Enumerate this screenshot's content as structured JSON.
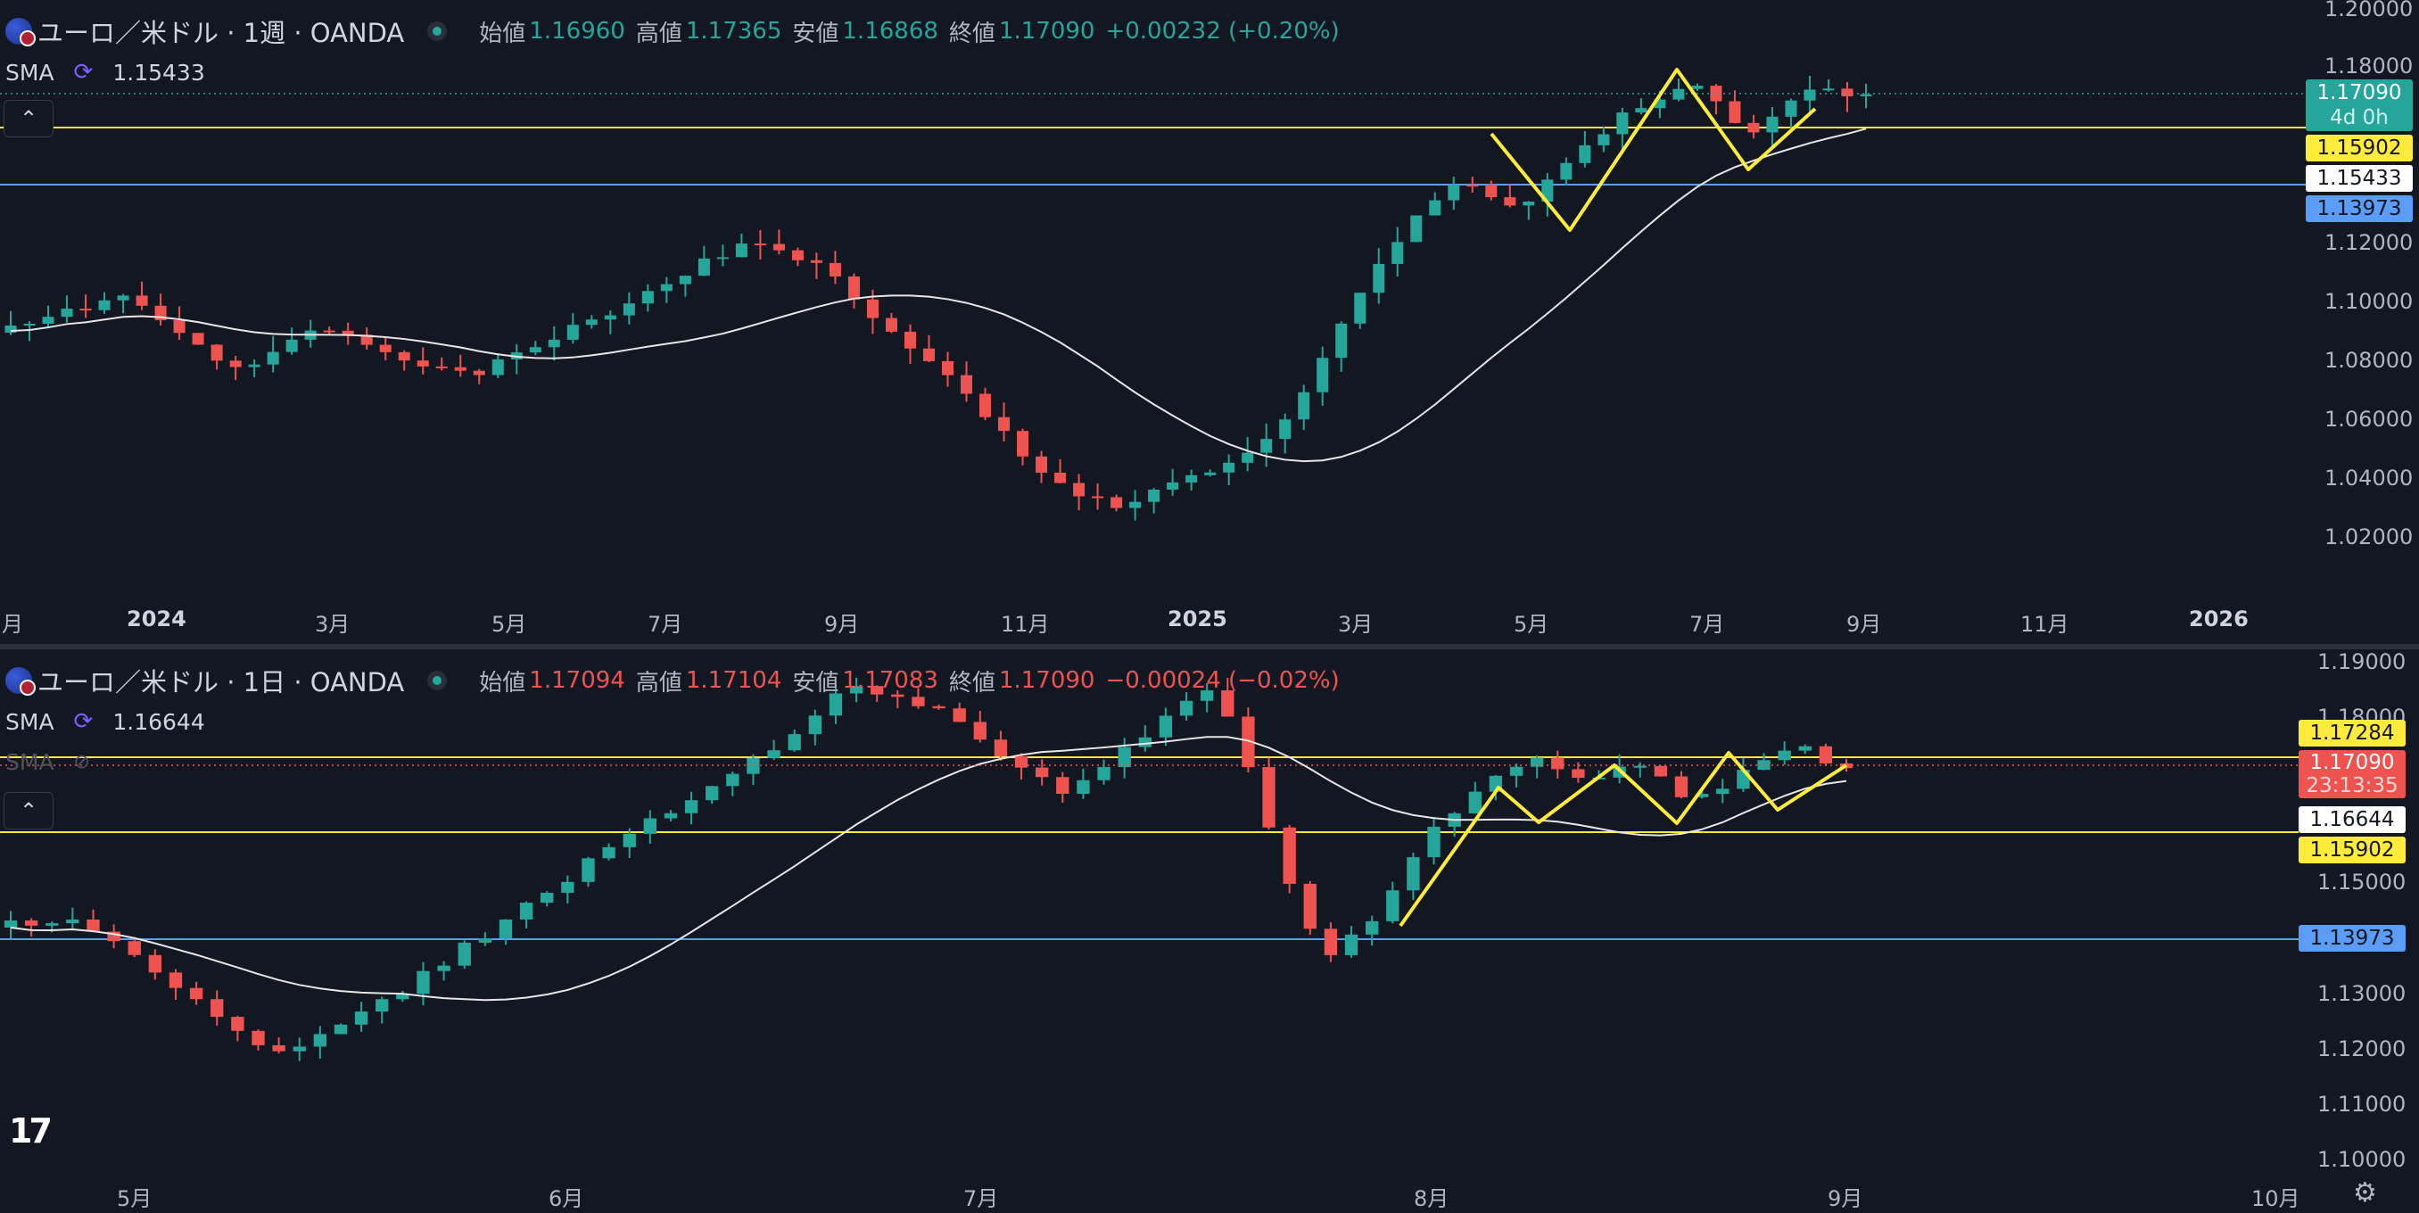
{
  "weekly": {
    "symbol": "ユーロ／米ドル · 1週 · OANDA",
    "ohlc": [
      {
        "k": "始値",
        "v": "1.16960"
      },
      {
        "k": "高値",
        "v": "1.17365"
      },
      {
        "k": "安値",
        "v": "1.16868"
      },
      {
        "k": "終値",
        "v": "1.17090"
      }
    ],
    "change": "+0.00232 (+0.20%)",
    "change_dir": "up",
    "sma_label": "SMA",
    "sma_value": "1.15433",
    "price_axis": [
      "1.20000",
      "1.18000",
      "1.12000",
      "1.10000",
      "1.08000",
      "1.06000",
      "1.04000",
      "1.02000"
    ],
    "time_axis": [
      "月",
      "2024",
      "3月",
      "5月",
      "7月",
      "9月",
      "11月",
      "2025",
      "3月",
      "5月",
      "7月",
      "9月",
      "11月",
      "2026"
    ],
    "tags": {
      "last": "1.17090",
      "countdown": "4d 0h",
      "yellow": "1.15902",
      "sma": "1.15433",
      "blue": "1.13973"
    }
  },
  "daily": {
    "symbol": "ユーロ／米ドル · 1日 · OANDA",
    "ohlc": [
      {
        "k": "始値",
        "v": "1.17094"
      },
      {
        "k": "高値",
        "v": "1.17104"
      },
      {
        "k": "安値",
        "v": "1.17083"
      },
      {
        "k": "終値",
        "v": "1.17090"
      }
    ],
    "change": "−0.00024 (−0.02%)",
    "change_dir": "down",
    "sma_label": "SMA",
    "sma_value": "1.16644",
    "sma2_label": "SMA",
    "price_axis": [
      "1.19000",
      "1.18000",
      "1.15000",
      "1.13000",
      "1.12000",
      "1.11000",
      "1.10000"
    ],
    "time_axis": [
      "5月",
      "6月",
      "7月",
      "8月",
      "9月",
      "10月"
    ],
    "tags": {
      "yellow_top": "1.17284",
      "last": "1.17090",
      "countdown": "23:13:35",
      "sma": "1.16644",
      "yellow_bottom": "1.15902",
      "blue": "1.13973"
    }
  },
  "colors": {
    "up": "#26a69a",
    "down": "#ef5350",
    "yellow": "#ffeb3b",
    "blue": "#5b9cf6",
    "bg": "#131722"
  },
  "icons": {
    "collapse": "chevron-up-icon",
    "refresh": "refresh-icon",
    "hidden": "eye-off-icon",
    "settings": "gear-icon",
    "logo": "tradingview-logo"
  },
  "logo_text": "17"
}
